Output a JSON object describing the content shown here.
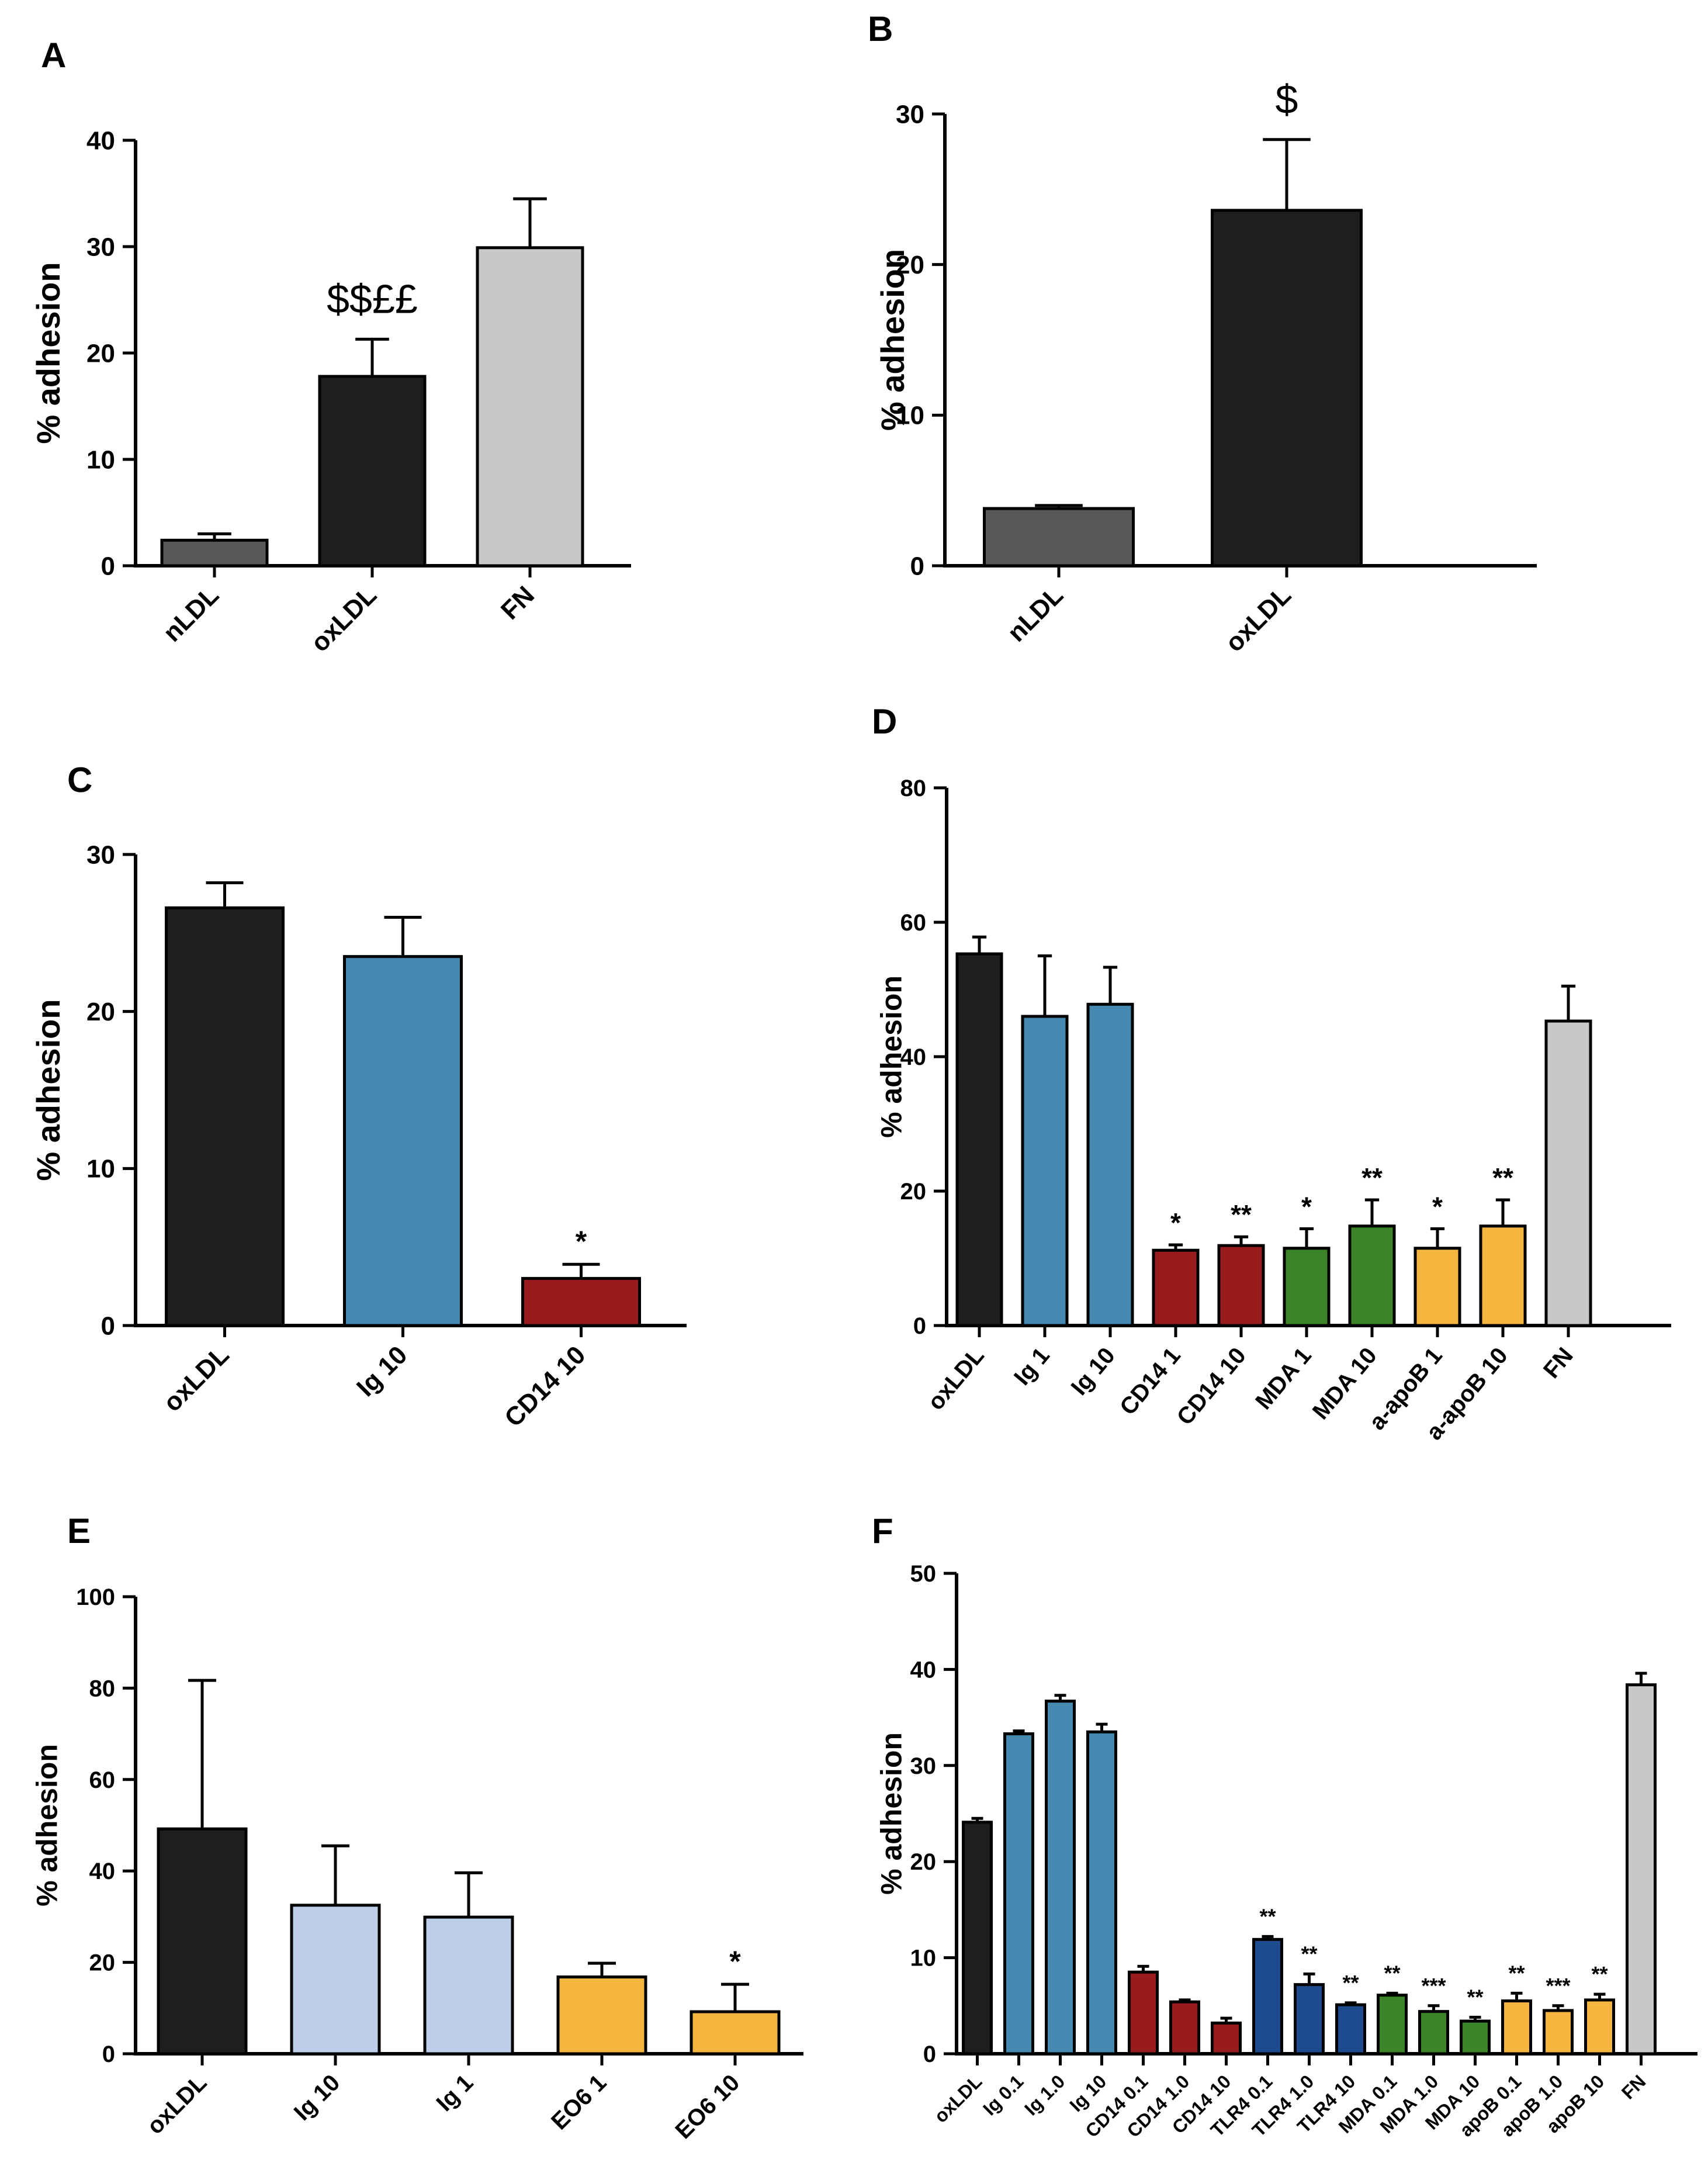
{
  "chart_data": [
    {
      "type": "bar",
      "panel": "A",
      "ylabel": "% adhesion",
      "ylim": [
        0,
        40
      ],
      "yticks": [
        0,
        10,
        20,
        30,
        40
      ],
      "categories": [
        "nLDL",
        "oxLDL",
        "FN"
      ],
      "values": [
        2.4,
        17.8,
        29.9
      ],
      "errors": [
        0.6,
        3.5,
        4.6
      ],
      "colors": [
        "#5a5758",
        "#1e1e1e",
        "#c8c8c8"
      ],
      "annotations": [
        "",
        "$$££",
        ""
      ]
    },
    {
      "type": "bar",
      "panel": "B",
      "ylabel": "% adhesion",
      "ylim": [
        0,
        30
      ],
      "yticks": [
        0,
        10,
        20,
        30
      ],
      "categories": [
        "nLDL",
        "oxLDL"
      ],
      "values": [
        3.8,
        23.6
      ],
      "errors": [
        0.2,
        4.7
      ],
      "colors": [
        "#5a5758",
        "#1e1e1e"
      ],
      "annotations": [
        "",
        "$"
      ]
    },
    {
      "type": "bar",
      "panel": "C",
      "ylabel": "% adhesion",
      "ylim": [
        0,
        30
      ],
      "yticks": [
        0,
        10,
        20,
        30
      ],
      "categories": [
        "oxLDL",
        "Ig 10",
        "CD14 10"
      ],
      "values": [
        26.6,
        23.5,
        3.0
      ],
      "errors": [
        1.6,
        2.5,
        0.9
      ],
      "colors": [
        "#1e1e1e",
        "#4589b1",
        "#9a1b1e"
      ],
      "annotations": [
        "",
        "",
        "*"
      ]
    },
    {
      "type": "bar",
      "panel": "D",
      "ylabel": "% adhesion",
      "ylim": [
        0,
        80
      ],
      "yticks": [
        0,
        20,
        40,
        60,
        80
      ],
      "categories": [
        "oxLDL",
        "Ig 1",
        "Ig 10",
        "CD14 1",
        "CD14 10",
        "MDA 1",
        "MDA 10",
        "a-apoB 1",
        "a-apoB 10",
        "FN"
      ],
      "values": [
        55.3,
        46.0,
        47.8,
        11.2,
        11.9,
        11.5,
        14.8,
        11.5,
        14.8,
        45.3
      ],
      "errors": [
        2.5,
        9.0,
        5.5,
        0.8,
        1.3,
        2.9,
        3.9,
        2.9,
        3.9,
        5.2
      ],
      "colors": [
        "#1e1e1e",
        "#4589b1",
        "#4589b1",
        "#9a1b1e",
        "#9a1b1e",
        "#3b8428",
        "#3b8428",
        "#f5b640",
        "#f5b640",
        "#c8c8c8"
      ],
      "annotations": [
        "",
        "",
        "",
        "*",
        "**",
        "*",
        "**",
        "*",
        "**",
        ""
      ]
    },
    {
      "type": "bar",
      "panel": "E",
      "ylabel": "% adhesion",
      "ylim": [
        0,
        100
      ],
      "yticks": [
        0,
        20,
        40,
        60,
        80,
        100
      ],
      "categories": [
        "oxLDL",
        "Ig 10",
        "Ig 1",
        "EO6 1",
        "EO6 10"
      ],
      "values": [
        49.2,
        32.5,
        29.9,
        16.8,
        9.2
      ],
      "errors": [
        32.5,
        13.0,
        9.7,
        3.0,
        6.0
      ],
      "colors": [
        "#1e1e1e",
        "#bccee9",
        "#bccee9",
        "#f5b640",
        "#f5b640"
      ],
      "annotations": [
        "",
        "",
        "",
        "",
        "*"
      ]
    },
    {
      "type": "bar",
      "panel": "F",
      "ylabel": "% adhesion",
      "ylim": [
        0,
        50
      ],
      "yticks": [
        0,
        10,
        20,
        30,
        40,
        50
      ],
      "categories": [
        "oxLDL",
        "Ig 0.1",
        "Ig 1.0",
        "Ig 10",
        "CD14 0.1",
        "CD14 1.0",
        "CD14 10",
        "TLR4 0.1",
        "TLR4 1.0",
        "TLR4 10",
        "MDA 0.1",
        "MDA 1.0",
        "MDA 10",
        "apoB 0.1",
        "apoB 1.0",
        "apoB 10",
        "FN"
      ],
      "values": [
        24.1,
        33.3,
        36.7,
        33.5,
        8.5,
        5.4,
        3.2,
        11.9,
        7.2,
        5.1,
        6.1,
        4.4,
        3.4,
        5.5,
        4.5,
        5.6,
        38.4
      ],
      "errors": [
        0.4,
        0.3,
        0.6,
        0.8,
        0.6,
        0.2,
        0.5,
        0.3,
        1.1,
        0.2,
        0.2,
        0.6,
        0.4,
        0.8,
        0.5,
        0.6,
        1.2
      ],
      "colors": [
        "#1e1e1e",
        "#4589b1",
        "#4589b1",
        "#4589b1",
        "#9a1b1e",
        "#9a1b1e",
        "#9a1b1e",
        "#1e4b8d",
        "#1e4b8d",
        "#1e4b8d",
        "#3b8428",
        "#3b8428",
        "#3b8428",
        "#f5b640",
        "#f5b640",
        "#f5b640",
        "#c8c8c8"
      ],
      "annotations": [
        "",
        "",
        "",
        "",
        "",
        "",
        "",
        "**",
        "**",
        "**",
        "**",
        "***",
        "**",
        "**",
        "***",
        "**",
        ""
      ]
    }
  ]
}
